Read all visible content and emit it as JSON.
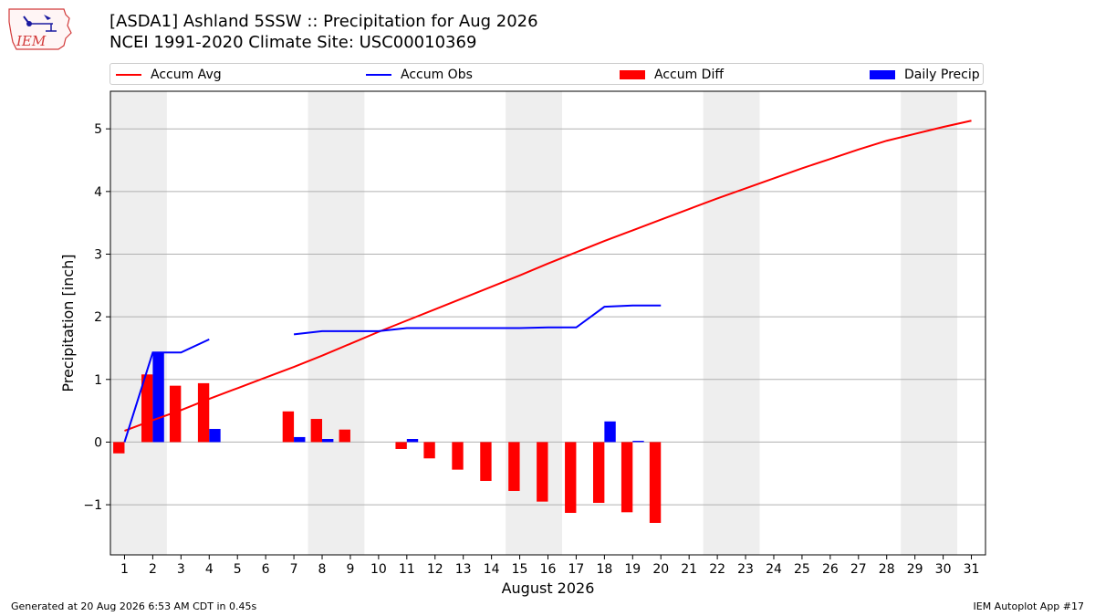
{
  "header": {
    "title_line1": "[ASDA1] Ashland 5SSW :: Precipitation for Aug 2026",
    "title_line2": "NCEI 1991-2020 Climate Site: USC00010369",
    "logo_text": "IEM"
  },
  "legend": [
    {
      "label": "Accum Avg",
      "kind": "line",
      "color": "#ff0000"
    },
    {
      "label": "Accum Obs",
      "kind": "line",
      "color": "#0000ff"
    },
    {
      "label": "Accum Diff",
      "kind": "bar",
      "color": "#ff0000"
    },
    {
      "label": "Daily Precip",
      "kind": "bar",
      "color": "#0000ff"
    }
  ],
  "footer": {
    "left": "Generated at 20 Aug 2026 6:53 AM CDT in 0.45s",
    "right": "IEM Autoplot App #17"
  },
  "chart_data": {
    "type": "bar",
    "xlabel": "August 2026",
    "ylabel": "Precipitation [inch]",
    "x": [
      1,
      2,
      3,
      4,
      5,
      6,
      7,
      8,
      9,
      10,
      11,
      12,
      13,
      14,
      15,
      16,
      17,
      18,
      19,
      20,
      21,
      22,
      23,
      24,
      25,
      26,
      27,
      28,
      29,
      30,
      31
    ],
    "xlim": [
      0.5,
      31.5
    ],
    "ylim": [
      -1.8,
      5.6
    ],
    "yticks": [
      -1,
      0,
      1,
      2,
      3,
      4,
      5
    ],
    "ytick_labels": [
      "−1",
      "0",
      "1",
      "2",
      "3",
      "4",
      "5"
    ],
    "grid": "y",
    "weekend_shading": [
      [
        0.5,
        2.5
      ],
      [
        7.5,
        9.5
      ],
      [
        14.5,
        16.5
      ],
      [
        21.5,
        23.5
      ],
      [
        28.5,
        30.5
      ]
    ],
    "shade_color": "#eeeeee",
    "series": [
      {
        "name": "Accum Avg",
        "type": "line",
        "color": "#ff0000",
        "values": [
          0.18,
          0.35,
          0.51,
          0.69,
          0.86,
          1.03,
          1.2,
          1.38,
          1.57,
          1.76,
          1.94,
          2.12,
          2.3,
          2.48,
          2.66,
          2.85,
          3.03,
          3.21,
          3.38,
          3.55,
          3.72,
          3.89,
          4.05,
          4.21,
          4.37,
          4.52,
          4.67,
          4.81,
          4.92,
          5.03,
          5.13
        ]
      },
      {
        "name": "Accum Obs",
        "type": "line",
        "color": "#0000ff",
        "values": [
          0.0,
          1.43,
          1.43,
          1.64,
          null,
          null,
          1.72,
          1.77,
          1.77,
          1.77,
          1.82,
          1.82,
          1.82,
          1.82,
          1.82,
          1.83,
          1.83,
          2.16,
          2.18,
          2.18,
          null,
          null,
          null,
          null,
          null,
          null,
          null,
          null,
          null,
          null,
          null
        ]
      },
      {
        "name": "Accum Diff",
        "type": "bar",
        "color": "#ff0000",
        "values": [
          -0.18,
          1.08,
          0.9,
          0.94,
          null,
          null,
          0.49,
          0.37,
          0.2,
          null,
          -0.11,
          -0.26,
          -0.44,
          -0.62,
          -0.78,
          -0.95,
          -1.13,
          -0.97,
          -1.12,
          -1.29,
          null,
          null,
          null,
          null,
          null,
          null,
          null,
          null,
          null,
          null,
          null
        ]
      },
      {
        "name": "Daily Precip",
        "type": "bar",
        "color": "#0000ff",
        "values": [
          0.0,
          1.43,
          0.0,
          0.21,
          null,
          null,
          0.08,
          0.05,
          0.0,
          0.0,
          0.05,
          0.0,
          0.0,
          0.0,
          0.0,
          0.0,
          0.0,
          0.33,
          0.02,
          0.0,
          null,
          null,
          null,
          null,
          null,
          null,
          null,
          null,
          null,
          null,
          null
        ]
      }
    ]
  }
}
